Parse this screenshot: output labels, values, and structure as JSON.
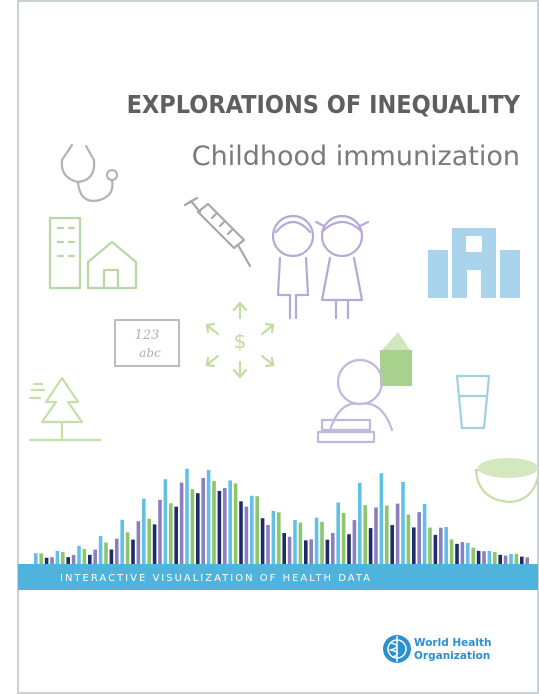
{
  "cover": {
    "title": "EXPLORATIONS OF INEQUALITY",
    "subtitle": "Childhood immunization",
    "icon_text": [
      "123",
      "abc"
    ],
    "banner": "INTERACTIVE VISUALIZATION OF HEALTH DATA",
    "publisher": {
      "line1": "World Health",
      "line2": "Organization"
    }
  }
}
